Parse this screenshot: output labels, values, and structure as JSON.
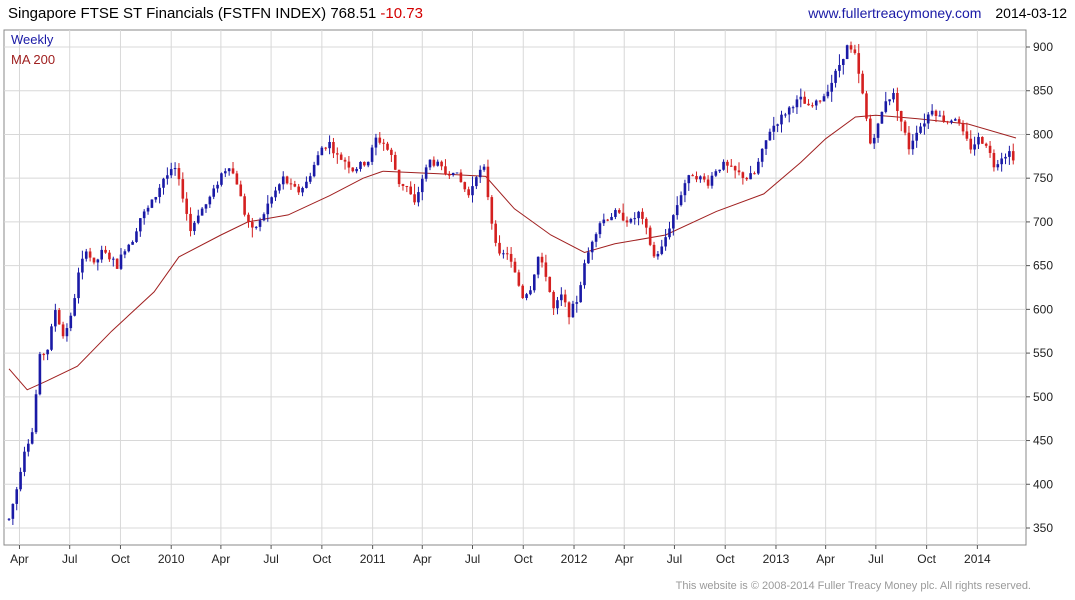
{
  "header": {
    "title": "Singapore FTSE ST Financials (FSTFN INDEX)",
    "last": "768.51",
    "change": "-10.73",
    "url": "www.fullertreacymoney.com",
    "date": "2014-03-12"
  },
  "legend": {
    "weekly": "Weekly",
    "ma": "MA 200"
  },
  "footer": "This website is © 2008-2014 Fuller Treacy Money plc. All rights reserved.",
  "colors": {
    "up": "#1a1aa6",
    "down": "#d42020",
    "ma": "#a02020",
    "grid": "#d8d8d8"
  },
  "chart_data": {
    "type": "candlestick",
    "frequency": "weekly",
    "x_start": "2009-03-13",
    "x_end": "2014-03-12",
    "ylim": [
      335,
      910
    ],
    "y_ticks": [
      350,
      400,
      450,
      500,
      550,
      600,
      650,
      700,
      750,
      800,
      850,
      900
    ],
    "x_ticks": [
      {
        "label": "Apr",
        "date": "2009-04-01"
      },
      {
        "label": "Jul",
        "date": "2009-07-01"
      },
      {
        "label": "Oct",
        "date": "2009-10-01"
      },
      {
        "label": "2010",
        "date": "2010-01-01"
      },
      {
        "label": "Apr",
        "date": "2010-04-01"
      },
      {
        "label": "Jul",
        "date": "2010-07-01"
      },
      {
        "label": "Oct",
        "date": "2010-10-01"
      },
      {
        "label": "2011",
        "date": "2011-01-01"
      },
      {
        "label": "Apr",
        "date": "2011-04-01"
      },
      {
        "label": "Jul",
        "date": "2011-07-01"
      },
      {
        "label": "Oct",
        "date": "2011-10-01"
      },
      {
        "label": "2012",
        "date": "2012-01-01"
      },
      {
        "label": "Apr",
        "date": "2012-04-01"
      },
      {
        "label": "Jul",
        "date": "2012-07-01"
      },
      {
        "label": "Oct",
        "date": "2012-10-01"
      },
      {
        "label": "2013",
        "date": "2013-01-01"
      },
      {
        "label": "Apr",
        "date": "2013-04-01"
      },
      {
        "label": "Jul",
        "date": "2013-07-01"
      },
      {
        "label": "Oct",
        "date": "2013-10-01"
      },
      {
        "label": "2014",
        "date": "2014-01-01"
      }
    ],
    "price_path": [
      {
        "date": "2009-03-13",
        "y": 360
      },
      {
        "date": "2009-03-27",
        "y": 395
      },
      {
        "date": "2009-04-10",
        "y": 440
      },
      {
        "date": "2009-04-24",
        "y": 460
      },
      {
        "date": "2009-05-08",
        "y": 545
      },
      {
        "date": "2009-05-22",
        "y": 555
      },
      {
        "date": "2009-06-05",
        "y": 600
      },
      {
        "date": "2009-06-19",
        "y": 570
      },
      {
        "date": "2009-07-03",
        "y": 590
      },
      {
        "date": "2009-07-17",
        "y": 640
      },
      {
        "date": "2009-07-31",
        "y": 670
      },
      {
        "date": "2009-08-14",
        "y": 650
      },
      {
        "date": "2009-08-28",
        "y": 665
      },
      {
        "date": "2009-09-11",
        "y": 660
      },
      {
        "date": "2009-09-25",
        "y": 650
      },
      {
        "date": "2009-10-09",
        "y": 670
      },
      {
        "date": "2009-10-23",
        "y": 680
      },
      {
        "date": "2009-11-06",
        "y": 705
      },
      {
        "date": "2009-11-20",
        "y": 715
      },
      {
        "date": "2009-12-04",
        "y": 730
      },
      {
        "date": "2009-12-18",
        "y": 750
      },
      {
        "date": "2010-01-08",
        "y": 760
      },
      {
        "date": "2010-01-22",
        "y": 730
      },
      {
        "date": "2010-02-05",
        "y": 690
      },
      {
        "date": "2010-02-19",
        "y": 710
      },
      {
        "date": "2010-03-05",
        "y": 720
      },
      {
        "date": "2010-03-19",
        "y": 735
      },
      {
        "date": "2010-04-02",
        "y": 755
      },
      {
        "date": "2010-04-16",
        "y": 765
      },
      {
        "date": "2010-04-30",
        "y": 745
      },
      {
        "date": "2010-05-14",
        "y": 710
      },
      {
        "date": "2010-05-28",
        "y": 690
      },
      {
        "date": "2010-06-11",
        "y": 700
      },
      {
        "date": "2010-06-25",
        "y": 720
      },
      {
        "date": "2010-07-09",
        "y": 735
      },
      {
        "date": "2010-07-23",
        "y": 750
      },
      {
        "date": "2010-08-06",
        "y": 740
      },
      {
        "date": "2010-08-20",
        "y": 735
      },
      {
        "date": "2010-09-03",
        "y": 745
      },
      {
        "date": "2010-09-17",
        "y": 765
      },
      {
        "date": "2010-10-01",
        "y": 785
      },
      {
        "date": "2010-10-15",
        "y": 790
      },
      {
        "date": "2010-10-29",
        "y": 775
      },
      {
        "date": "2010-11-12",
        "y": 770
      },
      {
        "date": "2010-11-26",
        "y": 760
      },
      {
        "date": "2010-12-10",
        "y": 765
      },
      {
        "date": "2010-12-24",
        "y": 770
      },
      {
        "date": "2011-01-07",
        "y": 795
      },
      {
        "date": "2011-01-21",
        "y": 790
      },
      {
        "date": "2011-02-04",
        "y": 775
      },
      {
        "date": "2011-02-18",
        "y": 745
      },
      {
        "date": "2011-03-04",
        "y": 740
      },
      {
        "date": "2011-03-18",
        "y": 720
      },
      {
        "date": "2011-04-01",
        "y": 750
      },
      {
        "date": "2011-04-15",
        "y": 770
      },
      {
        "date": "2011-04-29",
        "y": 765
      },
      {
        "date": "2011-05-13",
        "y": 755
      },
      {
        "date": "2011-05-27",
        "y": 760
      },
      {
        "date": "2011-06-10",
        "y": 745
      },
      {
        "date": "2011-06-24",
        "y": 730
      },
      {
        "date": "2011-07-08",
        "y": 755
      },
      {
        "date": "2011-07-22",
        "y": 760
      },
      {
        "date": "2011-08-05",
        "y": 700
      },
      {
        "date": "2011-08-19",
        "y": 660
      },
      {
        "date": "2011-09-02",
        "y": 665
      },
      {
        "date": "2011-09-16",
        "y": 640
      },
      {
        "date": "2011-09-30",
        "y": 615
      },
      {
        "date": "2011-10-14",
        "y": 625
      },
      {
        "date": "2011-10-28",
        "y": 660
      },
      {
        "date": "2011-11-11",
        "y": 640
      },
      {
        "date": "2011-11-25",
        "y": 600
      },
      {
        "date": "2011-12-09",
        "y": 615
      },
      {
        "date": "2011-12-23",
        "y": 595
      },
      {
        "date": "2012-01-06",
        "y": 610
      },
      {
        "date": "2012-01-20",
        "y": 650
      },
      {
        "date": "2012-02-03",
        "y": 680
      },
      {
        "date": "2012-02-17",
        "y": 700
      },
      {
        "date": "2012-03-02",
        "y": 705
      },
      {
        "date": "2012-03-16",
        "y": 710
      },
      {
        "date": "2012-03-30",
        "y": 705
      },
      {
        "date": "2012-04-13",
        "y": 700
      },
      {
        "date": "2012-04-27",
        "y": 710
      },
      {
        "date": "2012-05-11",
        "y": 690
      },
      {
        "date": "2012-05-25",
        "y": 660
      },
      {
        "date": "2012-06-08",
        "y": 670
      },
      {
        "date": "2012-06-22",
        "y": 695
      },
      {
        "date": "2012-07-06",
        "y": 720
      },
      {
        "date": "2012-07-20",
        "y": 745
      },
      {
        "date": "2012-08-03",
        "y": 755
      },
      {
        "date": "2012-08-17",
        "y": 750
      },
      {
        "date": "2012-08-31",
        "y": 745
      },
      {
        "date": "2012-09-14",
        "y": 760
      },
      {
        "date": "2012-09-28",
        "y": 765
      },
      {
        "date": "2012-10-12",
        "y": 760
      },
      {
        "date": "2012-10-26",
        "y": 755
      },
      {
        "date": "2012-11-09",
        "y": 750
      },
      {
        "date": "2012-11-23",
        "y": 755
      },
      {
        "date": "2012-12-07",
        "y": 780
      },
      {
        "date": "2012-12-21",
        "y": 805
      },
      {
        "date": "2013-01-04",
        "y": 815
      },
      {
        "date": "2013-01-18",
        "y": 825
      },
      {
        "date": "2013-02-01",
        "y": 835
      },
      {
        "date": "2013-02-15",
        "y": 840
      },
      {
        "date": "2013-03-01",
        "y": 830
      },
      {
        "date": "2013-03-15",
        "y": 835
      },
      {
        "date": "2013-03-29",
        "y": 845
      },
      {
        "date": "2013-04-12",
        "y": 860
      },
      {
        "date": "2013-04-26",
        "y": 880
      },
      {
        "date": "2013-05-10",
        "y": 900
      },
      {
        "date": "2013-05-24",
        "y": 890
      },
      {
        "date": "2013-06-07",
        "y": 845
      },
      {
        "date": "2013-06-21",
        "y": 790
      },
      {
        "date": "2013-07-05",
        "y": 810
      },
      {
        "date": "2013-07-19",
        "y": 840
      },
      {
        "date": "2013-08-02",
        "y": 845
      },
      {
        "date": "2013-08-16",
        "y": 815
      },
      {
        "date": "2013-08-30",
        "y": 785
      },
      {
        "date": "2013-09-13",
        "y": 805
      },
      {
        "date": "2013-09-27",
        "y": 815
      },
      {
        "date": "2013-10-11",
        "y": 830
      },
      {
        "date": "2013-10-25",
        "y": 820
      },
      {
        "date": "2013-11-08",
        "y": 815
      },
      {
        "date": "2013-11-22",
        "y": 820
      },
      {
        "date": "2013-12-06",
        "y": 800
      },
      {
        "date": "2013-12-20",
        "y": 785
      },
      {
        "date": "2014-01-03",
        "y": 795
      },
      {
        "date": "2014-01-17",
        "y": 790
      },
      {
        "date": "2014-01-31",
        "y": 765
      },
      {
        "date": "2014-02-14",
        "y": 775
      },
      {
        "date": "2014-02-28",
        "y": 780
      },
      {
        "date": "2014-03-12",
        "y": 770
      }
    ],
    "ma200_path": [
      {
        "date": "2009-03-13",
        "y": 532
      },
      {
        "date": "2009-04-15",
        "y": 508
      },
      {
        "date": "2009-05-20",
        "y": 518
      },
      {
        "date": "2009-07-15",
        "y": 535
      },
      {
        "date": "2009-09-15",
        "y": 575
      },
      {
        "date": "2009-12-01",
        "y": 620
      },
      {
        "date": "2010-01-15",
        "y": 660
      },
      {
        "date": "2010-04-01",
        "y": 685
      },
      {
        "date": "2010-05-20",
        "y": 700
      },
      {
        "date": "2010-08-01",
        "y": 708
      },
      {
        "date": "2010-10-15",
        "y": 730
      },
      {
        "date": "2010-12-15",
        "y": 750
      },
      {
        "date": "2011-01-20",
        "y": 758
      },
      {
        "date": "2011-05-01",
        "y": 755
      },
      {
        "date": "2011-07-25",
        "y": 752
      },
      {
        "date": "2011-09-15",
        "y": 715
      },
      {
        "date": "2011-11-20",
        "y": 685
      },
      {
        "date": "2012-01-20",
        "y": 665
      },
      {
        "date": "2012-03-15",
        "y": 675
      },
      {
        "date": "2012-06-15",
        "y": 685
      },
      {
        "date": "2012-09-15",
        "y": 712
      },
      {
        "date": "2012-12-10",
        "y": 732
      },
      {
        "date": "2013-02-15",
        "y": 768
      },
      {
        "date": "2013-04-01",
        "y": 795
      },
      {
        "date": "2013-05-25",
        "y": 820
      },
      {
        "date": "2013-07-01",
        "y": 822
      },
      {
        "date": "2013-09-15",
        "y": 818
      },
      {
        "date": "2013-12-15",
        "y": 812
      },
      {
        "date": "2014-03-12",
        "y": 796
      }
    ]
  }
}
